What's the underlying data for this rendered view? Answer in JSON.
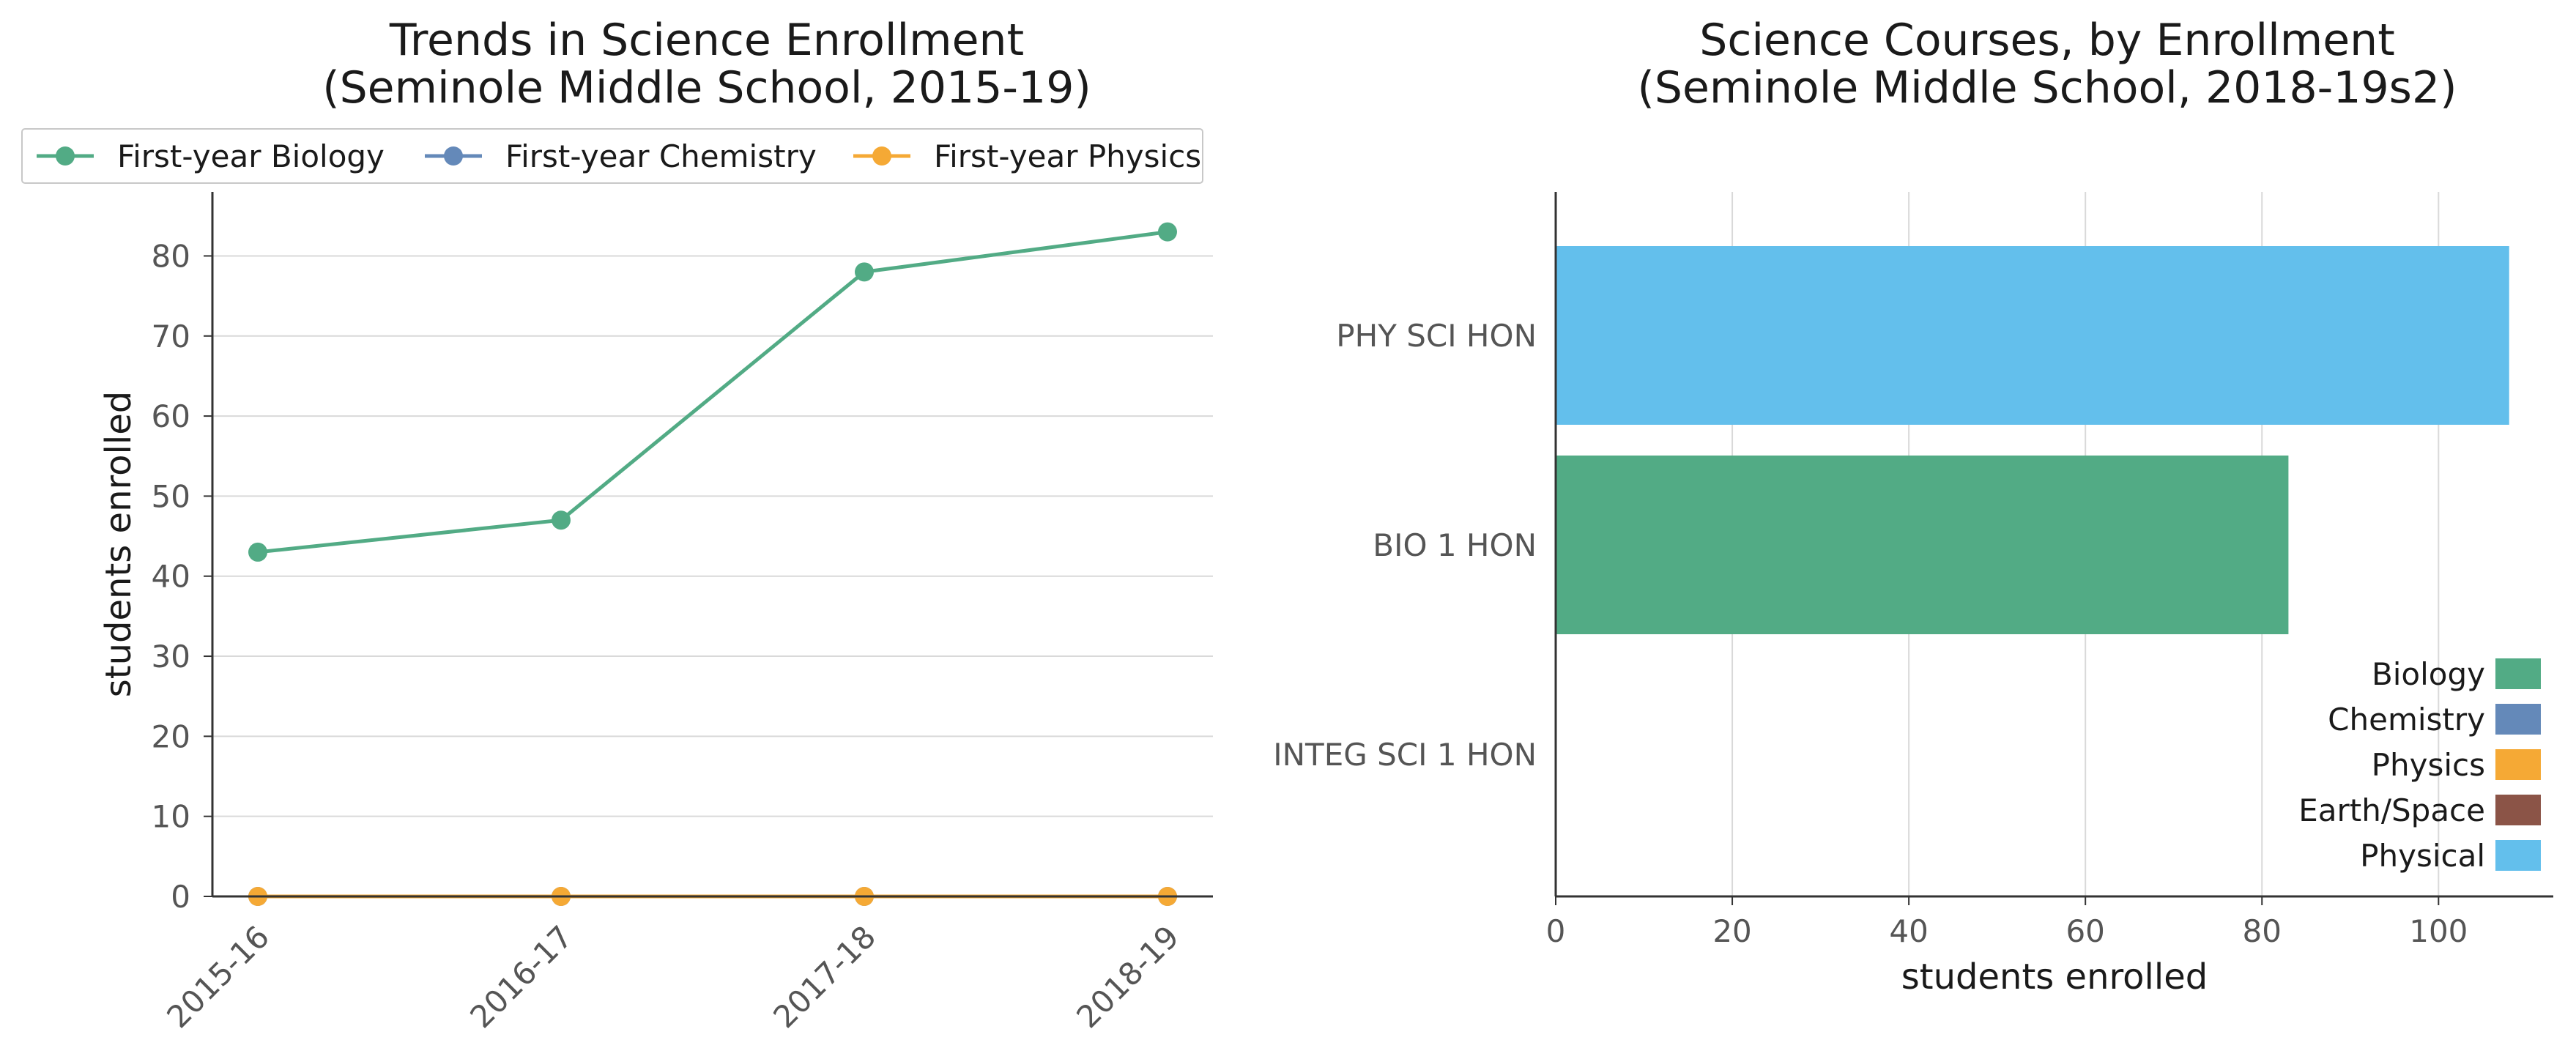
{
  "chart_data": [
    {
      "type": "line",
      "title": "Trends in Science Enrollment",
      "subtitle": "(Seminole Middle School, 2015-19)",
      "xlabel": "",
      "ylabel": "students enrolled",
      "categories": [
        "2015-16",
        "2016-17",
        "2017-18",
        "2018-19"
      ],
      "ylim": [
        0,
        88
      ],
      "yticks": [
        0,
        10,
        20,
        30,
        40,
        50,
        60,
        70,
        80
      ],
      "grid": "horizontal",
      "legend_position": "top",
      "series": [
        {
          "name": "First-year Biology",
          "color": "#52ab85",
          "values": [
            43,
            47,
            78,
            83
          ]
        },
        {
          "name": "First-year Chemistry",
          "color": "#6489b9",
          "values": [
            0,
            0,
            0,
            0
          ]
        },
        {
          "name": "First-year Physics",
          "color": "#f5a935",
          "values": [
            0,
            0,
            0,
            0
          ]
        }
      ]
    },
    {
      "type": "bar",
      "orientation": "horizontal",
      "title": "Science Courses, by Enrollment",
      "subtitle": "(Seminole Middle School, 2018-19s2)",
      "xlabel": "students enrolled",
      "ylabel": "",
      "xlim": [
        0,
        113
      ],
      "xticks": [
        0,
        20,
        40,
        60,
        80,
        100
      ],
      "grid": "vertical",
      "legend_position": "lower-right",
      "bars": [
        {
          "category": "PHY SCI HON",
          "value": 108,
          "group": "Physical"
        },
        {
          "category": "BIO 1 HON",
          "value": 83,
          "group": "Biology"
        },
        {
          "category": "INTEG SCI 1 HON",
          "value": 0,
          "group": "Physical"
        }
      ],
      "legend": [
        {
          "name": "Biology",
          "color": "#52ab85"
        },
        {
          "name": "Chemistry",
          "color": "#6489b9"
        },
        {
          "name": "Physics",
          "color": "#f5a935"
        },
        {
          "name": "Earth/Space",
          "color": "#8b5447"
        },
        {
          "name": "Physical",
          "color": "#63bfec"
        }
      ]
    }
  ]
}
